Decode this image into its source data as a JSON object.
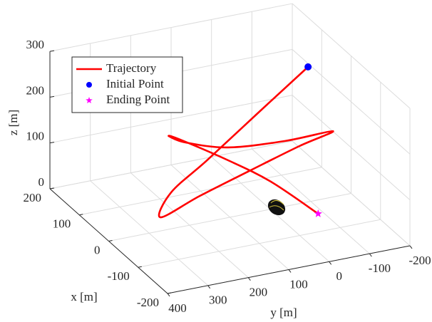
{
  "chart_data": {
    "type": "line3d",
    "xlabel": "x [m]",
    "ylabel": "y [m]",
    "zlabel": "z [m]",
    "xlim": [
      -200,
      200
    ],
    "ylim": [
      -200,
      400
    ],
    "zlim": [
      0,
      300
    ],
    "xticks": [
      -200,
      -100,
      0,
      100,
      200
    ],
    "yticks": [
      -200,
      -100,
      0,
      100,
      200,
      300,
      400
    ],
    "zticks": [
      0,
      100,
      200,
      300
    ],
    "grid": true,
    "legend": "upper left",
    "series": [
      {
        "name": "Trajectory",
        "color": "#ff0000",
        "kind": "line",
        "x": [
          64,
          -9,
          -80,
          -115,
          -158,
          -101,
          -46,
          8,
          41,
          47,
          69,
          118,
          155,
          148,
          79,
          14,
          -72
        ],
        "y": [
          -140,
          40,
          215,
          329,
          387,
          248,
          85,
          -78,
          -185,
          -71,
          54,
          124,
          138,
          120,
          47,
          -12,
          -66
        ],
        "z": [
          250,
          220,
          190,
          160,
          140,
          130,
          125,
          120,
          115,
          110,
          105,
          100,
          95,
          90,
          70,
          50,
          20
        ]
      },
      {
        "name": "Initial Point",
        "color": "#0000ff",
        "kind": "circle",
        "x": [
          64
        ],
        "y": [
          -140
        ],
        "z": [
          250
        ]
      },
      {
        "name": "Ending Point",
        "color": "#ff00ff",
        "kind": "star",
        "x": [
          -72
        ],
        "y": [
          -66
        ],
        "z": [
          20
        ]
      }
    ]
  }
}
